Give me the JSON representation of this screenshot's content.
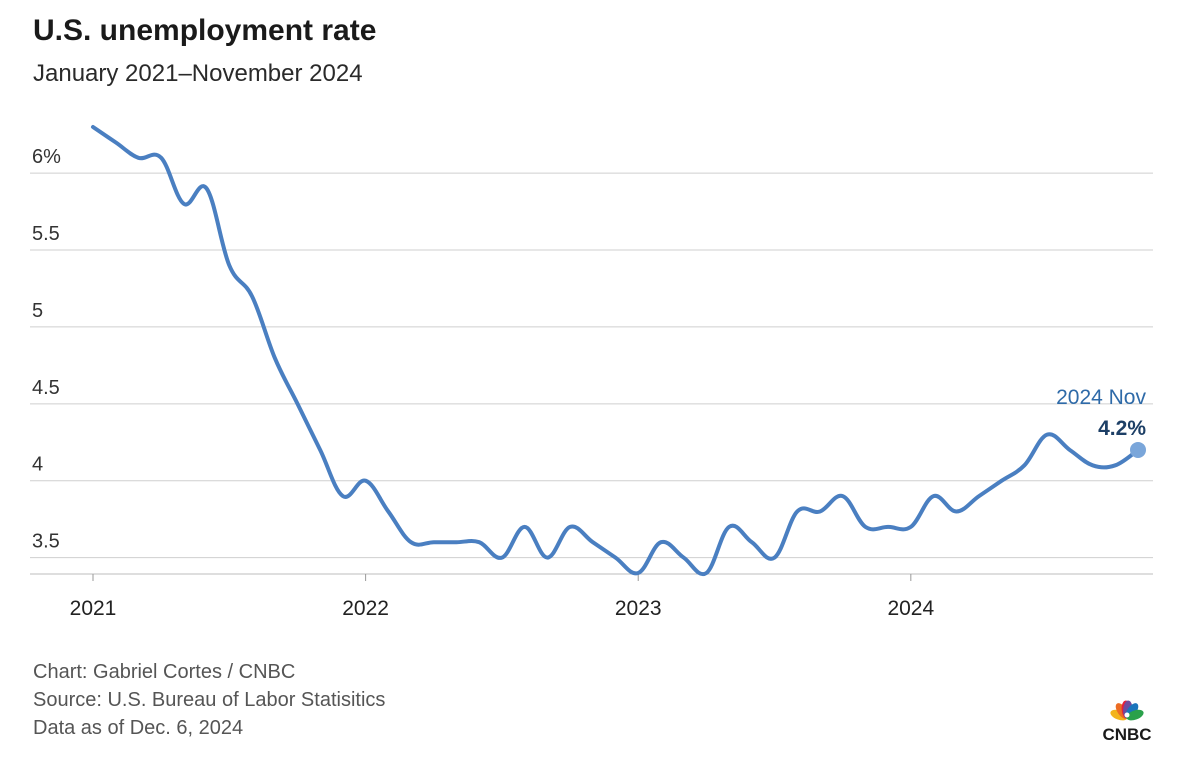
{
  "header": {
    "title": "U.S. unemployment rate",
    "subtitle": "January 2021–November 2024"
  },
  "chart_data": {
    "type": "line",
    "title": "U.S. unemployment rate",
    "subtitle": "January 2021–November 2024",
    "xlabel": "",
    "ylabel": "",
    "grid": true,
    "ylim": [
      3.4,
      6.3
    ],
    "xlim": [
      "2021-01",
      "2024-11"
    ],
    "y_ticks": [
      3.5,
      4,
      4.5,
      5,
      5.5,
      6
    ],
    "y_tick_labels": [
      "3.5",
      "4",
      "4.5",
      "5",
      "5.5",
      "6%"
    ],
    "x_ticks": [
      "2021-01",
      "2022-01",
      "2023-01",
      "2024-01"
    ],
    "x_tick_labels": [
      "2021",
      "2022",
      "2023",
      "2024"
    ],
    "line_color": "#4a7fc1",
    "annotation": {
      "date_label": "2024 Nov",
      "value_label": "4.2%",
      "date_color": "#2e6aa8",
      "value_color": "#1d3f66"
    },
    "series": [
      {
        "x": [
          "2021-01",
          "2021-02",
          "2021-03",
          "2021-04",
          "2021-05",
          "2021-06",
          "2021-07",
          "2021-08",
          "2021-09",
          "2021-10",
          "2021-11",
          "2021-12",
          "2022-01",
          "2022-02",
          "2022-03",
          "2022-04",
          "2022-05",
          "2022-06",
          "2022-07",
          "2022-08",
          "2022-09",
          "2022-10",
          "2022-11",
          "2022-12",
          "2023-01",
          "2023-02",
          "2023-03",
          "2023-04",
          "2023-05",
          "2023-06",
          "2023-07",
          "2023-08",
          "2023-09",
          "2023-10",
          "2023-11",
          "2023-12",
          "2024-01",
          "2024-02",
          "2024-03",
          "2024-04",
          "2024-05",
          "2024-06",
          "2024-07",
          "2024-08",
          "2024-09",
          "2024-10",
          "2024-11"
        ],
        "values": [
          6.3,
          6.2,
          6.1,
          6.1,
          5.8,
          5.9,
          5.4,
          5.2,
          4.8,
          4.5,
          4.2,
          3.9,
          4.0,
          3.8,
          3.6,
          3.6,
          3.6,
          3.6,
          3.5,
          3.7,
          3.5,
          3.7,
          3.6,
          3.5,
          3.4,
          3.6,
          3.5,
          3.4,
          3.7,
          3.6,
          3.5,
          3.8,
          3.8,
          3.9,
          3.7,
          3.7,
          3.7,
          3.9,
          3.8,
          3.9,
          4.0,
          4.1,
          4.3,
          4.2,
          4.1,
          4.1,
          4.2
        ]
      }
    ]
  },
  "footer": {
    "credit": "Chart: Gabriel Cortes / CNBC",
    "source": "Source: U.S. Bureau of Labor Statisitics",
    "asof": "Data as of Dec. 6, 2024"
  },
  "logo": {
    "text": "CNBC",
    "icon": "peacock-icon",
    "colors": [
      "#f3b31b",
      "#ec6c23",
      "#e3203b",
      "#6e4b9e",
      "#1a75bc",
      "#2aa14b"
    ]
  }
}
